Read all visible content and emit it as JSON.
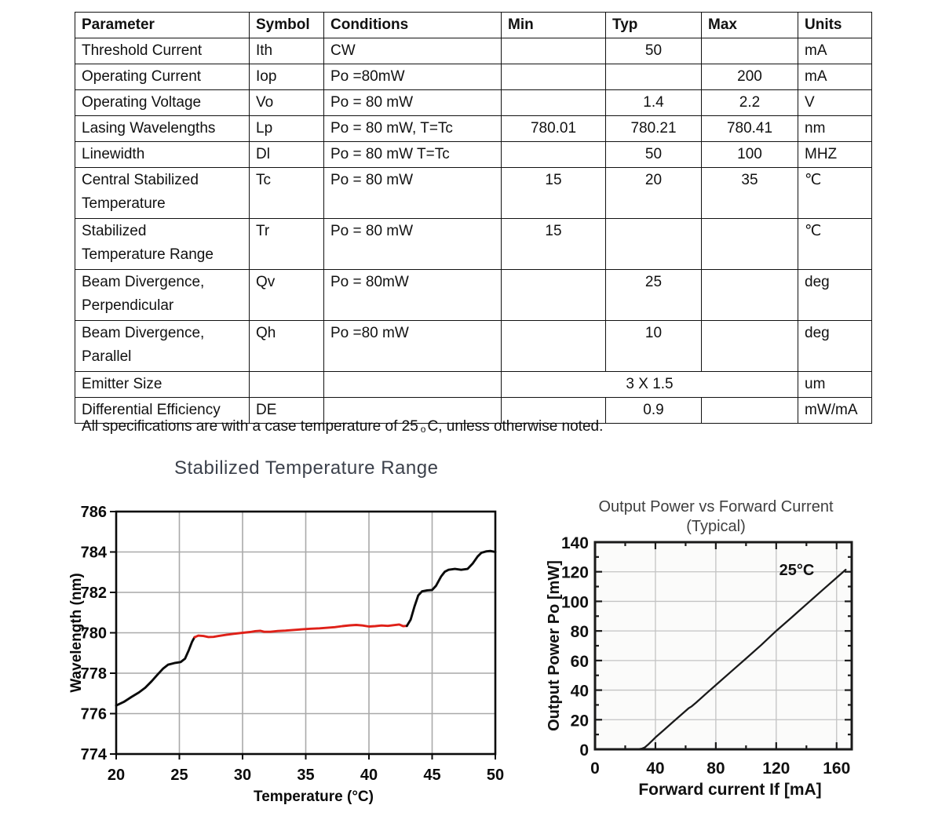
{
  "table": {
    "columns": [
      "Parameter",
      "Symbol",
      "Conditions",
      "Min",
      "Typ",
      "Max",
      "Units"
    ],
    "rows": [
      {
        "param": "Threshold Current",
        "symbol": "Ith",
        "conditions": "CW",
        "min": "",
        "typ": "50",
        "max": "",
        "units": "mA",
        "tall": false
      },
      {
        "param": "Operating Current",
        "symbol": "Iop",
        "conditions": "Po =80mW",
        "min": "",
        "typ": "",
        "max": "200",
        "units": "mA",
        "tall": false
      },
      {
        "param": "Operating Voltage",
        "symbol": "Vo",
        "conditions": "Po = 80 mW",
        "min": "",
        "typ": "1.4",
        "max": "2.2",
        "units": "V",
        "tall": false
      },
      {
        "param": "Lasing Wavelengths",
        "symbol": "Lp",
        "conditions": "Po = 80 mW, T=Tc",
        "min": "780.01",
        "typ": "780.21",
        "max": "780.41",
        "units": "nm",
        "tall": false
      },
      {
        "param": "Linewidth",
        "symbol": "Dl",
        "conditions": "Po = 80 mW T=Tc",
        "min": "",
        "typ": "50",
        "max": "100",
        "units": "MHZ",
        "tall": false
      },
      {
        "param": "Central Stabilized\nTemperature",
        "symbol": "Tc",
        "conditions": "Po = 80 mW",
        "min": "15",
        "typ": "20",
        "max": "35",
        "units": "℃",
        "tall": true
      },
      {
        "param": "Stabilized\nTemperature Range",
        "symbol": "Tr",
        "conditions": "Po = 80 mW",
        "min": "15",
        "typ": "",
        "max": "",
        "units": "℃",
        "tall": true
      },
      {
        "param": "Beam Divergence,\nPerpendicular",
        "symbol": "Qv",
        "conditions": "Po = 80mW",
        "min": "",
        "typ": "25",
        "max": "",
        "units": "deg",
        "tall": true
      },
      {
        "param": "Beam Divergence,\nParallel",
        "symbol": "Qh",
        "conditions": "Po =80 mW",
        "min": "",
        "typ": "10",
        "max": "",
        "units": "deg",
        "tall": true
      },
      {
        "param": "Emitter Size",
        "symbol": "",
        "conditions": "",
        "span": "3 X 1.5",
        "units": "um",
        "tall": false
      },
      {
        "param": "Differential Efficiency",
        "symbol": "DE",
        "conditions": "",
        "min": "",
        "typ": "0.9",
        "max": "",
        "units": "mW/mA",
        "tall": false
      }
    ],
    "footnote": {
      "prefix": "All specifications are with a case temperature of 25",
      "deg": "o",
      "suffix": "C, unless otherwise noted."
    }
  },
  "chart_data": [
    {
      "type": "line",
      "title": "Stabilized Temperature Range",
      "xlabel": "Temperature (°C)",
      "ylabel": "Wavelength (nm)",
      "xlim": [
        20,
        50
      ],
      "ylim": [
        774,
        786
      ],
      "xticks": [
        20,
        25,
        30,
        35,
        40,
        45,
        50
      ],
      "yticks": [
        774,
        776,
        778,
        780,
        782,
        784,
        786
      ],
      "grid": true,
      "series": [
        {
          "name": "wavelength-low-black",
          "color": "#0a0a0a",
          "points": [
            [
              20,
              776.4
            ],
            [
              20.6,
              776.58
            ],
            [
              21.2,
              776.82
            ],
            [
              21.8,
              777.05
            ],
            [
              22.3,
              777.28
            ],
            [
              22.8,
              777.6
            ],
            [
              23.3,
              777.95
            ],
            [
              23.7,
              778.22
            ],
            [
              24.1,
              778.42
            ],
            [
              24.6,
              778.5
            ],
            [
              25.1,
              778.55
            ],
            [
              25.45,
              778.72
            ],
            [
              25.75,
              779.15
            ],
            [
              26.0,
              779.55
            ],
            [
              26.2,
              779.78
            ]
          ]
        },
        {
          "name": "stabilized-range-red",
          "color": "#df2018",
          "points": [
            [
              26.2,
              779.78
            ],
            [
              26.5,
              779.86
            ],
            [
              26.9,
              779.84
            ],
            [
              27.3,
              779.79
            ],
            [
              27.7,
              779.8
            ],
            [
              28.1,
              779.84
            ],
            [
              28.7,
              779.9
            ],
            [
              29.3,
              779.95
            ],
            [
              30.0,
              780.0
            ],
            [
              30.6,
              780.04
            ],
            [
              31.0,
              780.08
            ],
            [
              31.4,
              780.1
            ],
            [
              31.7,
              780.05
            ],
            [
              32.2,
              780.05
            ],
            [
              32.8,
              780.09
            ],
            [
              33.4,
              780.11
            ],
            [
              34.0,
              780.14
            ],
            [
              34.7,
              780.17
            ],
            [
              35.4,
              780.2
            ],
            [
              36.1,
              780.22
            ],
            [
              36.7,
              780.25
            ],
            [
              37.3,
              780.28
            ],
            [
              37.9,
              780.33
            ],
            [
              38.5,
              780.37
            ],
            [
              39.0,
              780.39
            ],
            [
              39.5,
              780.36
            ],
            [
              40.0,
              780.31
            ],
            [
              40.5,
              780.33
            ],
            [
              41.0,
              780.36
            ],
            [
              41.5,
              780.34
            ],
            [
              42.0,
              780.38
            ],
            [
              42.4,
              780.41
            ],
            [
              42.7,
              780.33
            ],
            [
              43.0,
              780.34
            ]
          ]
        },
        {
          "name": "wavelength-high-black",
          "color": "#0a0a0a",
          "points": [
            [
              43.0,
              780.34
            ],
            [
              43.3,
              780.65
            ],
            [
              43.6,
              781.3
            ],
            [
              43.9,
              781.85
            ],
            [
              44.2,
              782.05
            ],
            [
              44.6,
              782.1
            ],
            [
              45.0,
              782.12
            ],
            [
              45.3,
              782.32
            ],
            [
              45.7,
              782.78
            ],
            [
              46.0,
              783.02
            ],
            [
              46.3,
              783.12
            ],
            [
              46.8,
              783.16
            ],
            [
              47.3,
              783.12
            ],
            [
              47.8,
              783.16
            ],
            [
              48.2,
              783.42
            ],
            [
              48.6,
              783.78
            ],
            [
              48.9,
              783.96
            ],
            [
              49.3,
              784.03
            ],
            [
              49.6,
              784.05
            ],
            [
              50.0,
              784.0
            ]
          ]
        }
      ]
    },
    {
      "type": "line",
      "title": "Output Power vs Forward Current",
      "subtitle": "(Typical)",
      "xlabel": "Forward current If [mA]",
      "ylabel": "Output Power Po [mW]",
      "xlim": [
        0,
        170
      ],
      "ylim": [
        0,
        140
      ],
      "xticks": [
        0,
        40,
        80,
        120,
        160
      ],
      "yticks": [
        0,
        20,
        40,
        60,
        80,
        100,
        120,
        140
      ],
      "x_minor_step": 20,
      "y_minor_step": 10,
      "grid": true,
      "annotation": {
        "text": "25°C",
        "x": 122,
        "y": 121
      },
      "series": [
        {
          "name": "po-vs-if-25c",
          "color": "#1a1a1a",
          "points": [
            [
              28,
              0
            ],
            [
              31,
              0.4
            ],
            [
              33,
              1.3
            ],
            [
              35,
              3
            ],
            [
              38,
              6
            ],
            [
              40,
              8
            ],
            [
              46,
              13.4
            ],
            [
              52,
              18.8
            ],
            [
              58,
              24.2
            ],
            [
              62,
              27.8
            ],
            [
              64,
              29
            ],
            [
              67,
              31.6
            ],
            [
              74,
              38
            ],
            [
              82,
              45.2
            ],
            [
              90,
              52.4
            ],
            [
              100,
              61.4
            ],
            [
              110,
              70.4
            ],
            [
              120,
              80
            ],
            [
              130,
              89
            ],
            [
              140,
              98
            ],
            [
              150,
              107
            ],
            [
              160,
              116
            ],
            [
              166,
              121.4
            ]
          ]
        }
      ]
    }
  ]
}
